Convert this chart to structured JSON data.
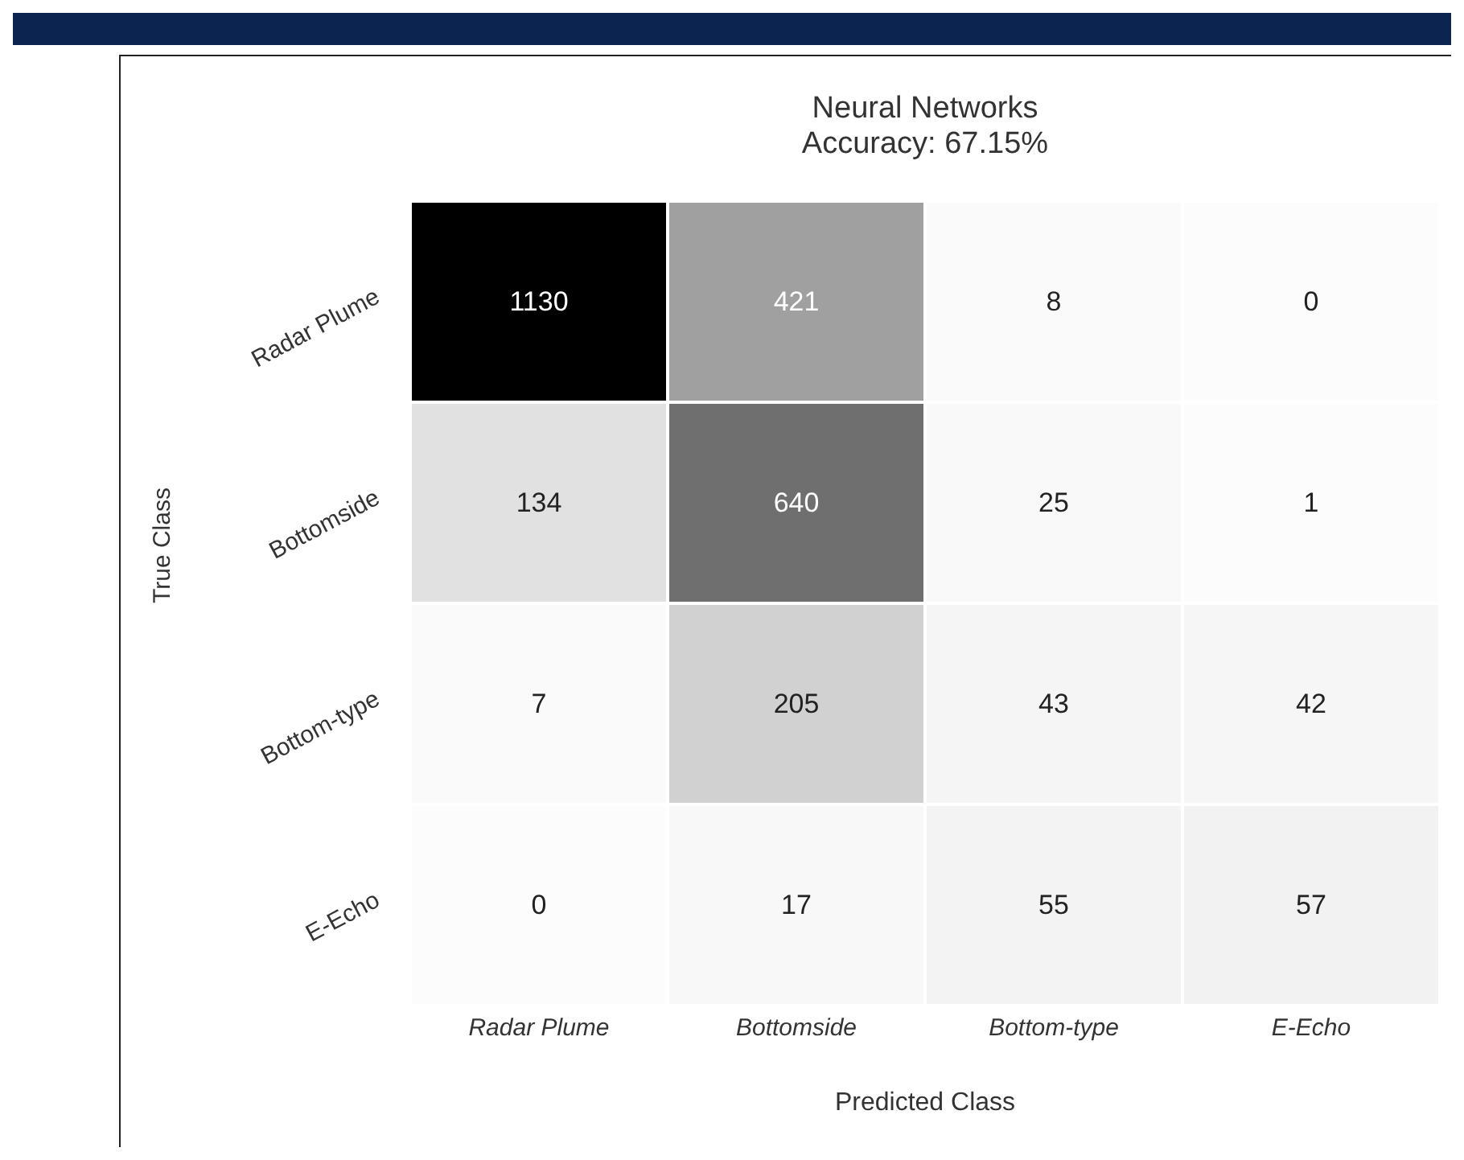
{
  "chart_data": {
    "type": "heatmap",
    "title": "Neural Networks",
    "subtitle": "Accuracy: 67.15%",
    "xlabel": "Predicted Class",
    "ylabel": "True Class",
    "categories": [
      "Radar Plume",
      "Bottomside",
      "Bottom-type",
      "E-Echo"
    ],
    "y_categories": [
      "Radar Plume",
      "Bottomside",
      "Bottom-type",
      "E-Echo"
    ],
    "cells": [
      [
        1130,
        421,
        8,
        0
      ],
      [
        134,
        640,
        25,
        1
      ],
      [
        7,
        205,
        43,
        42
      ],
      [
        0,
        17,
        55,
        57
      ]
    ],
    "data_labels": true
  }
}
